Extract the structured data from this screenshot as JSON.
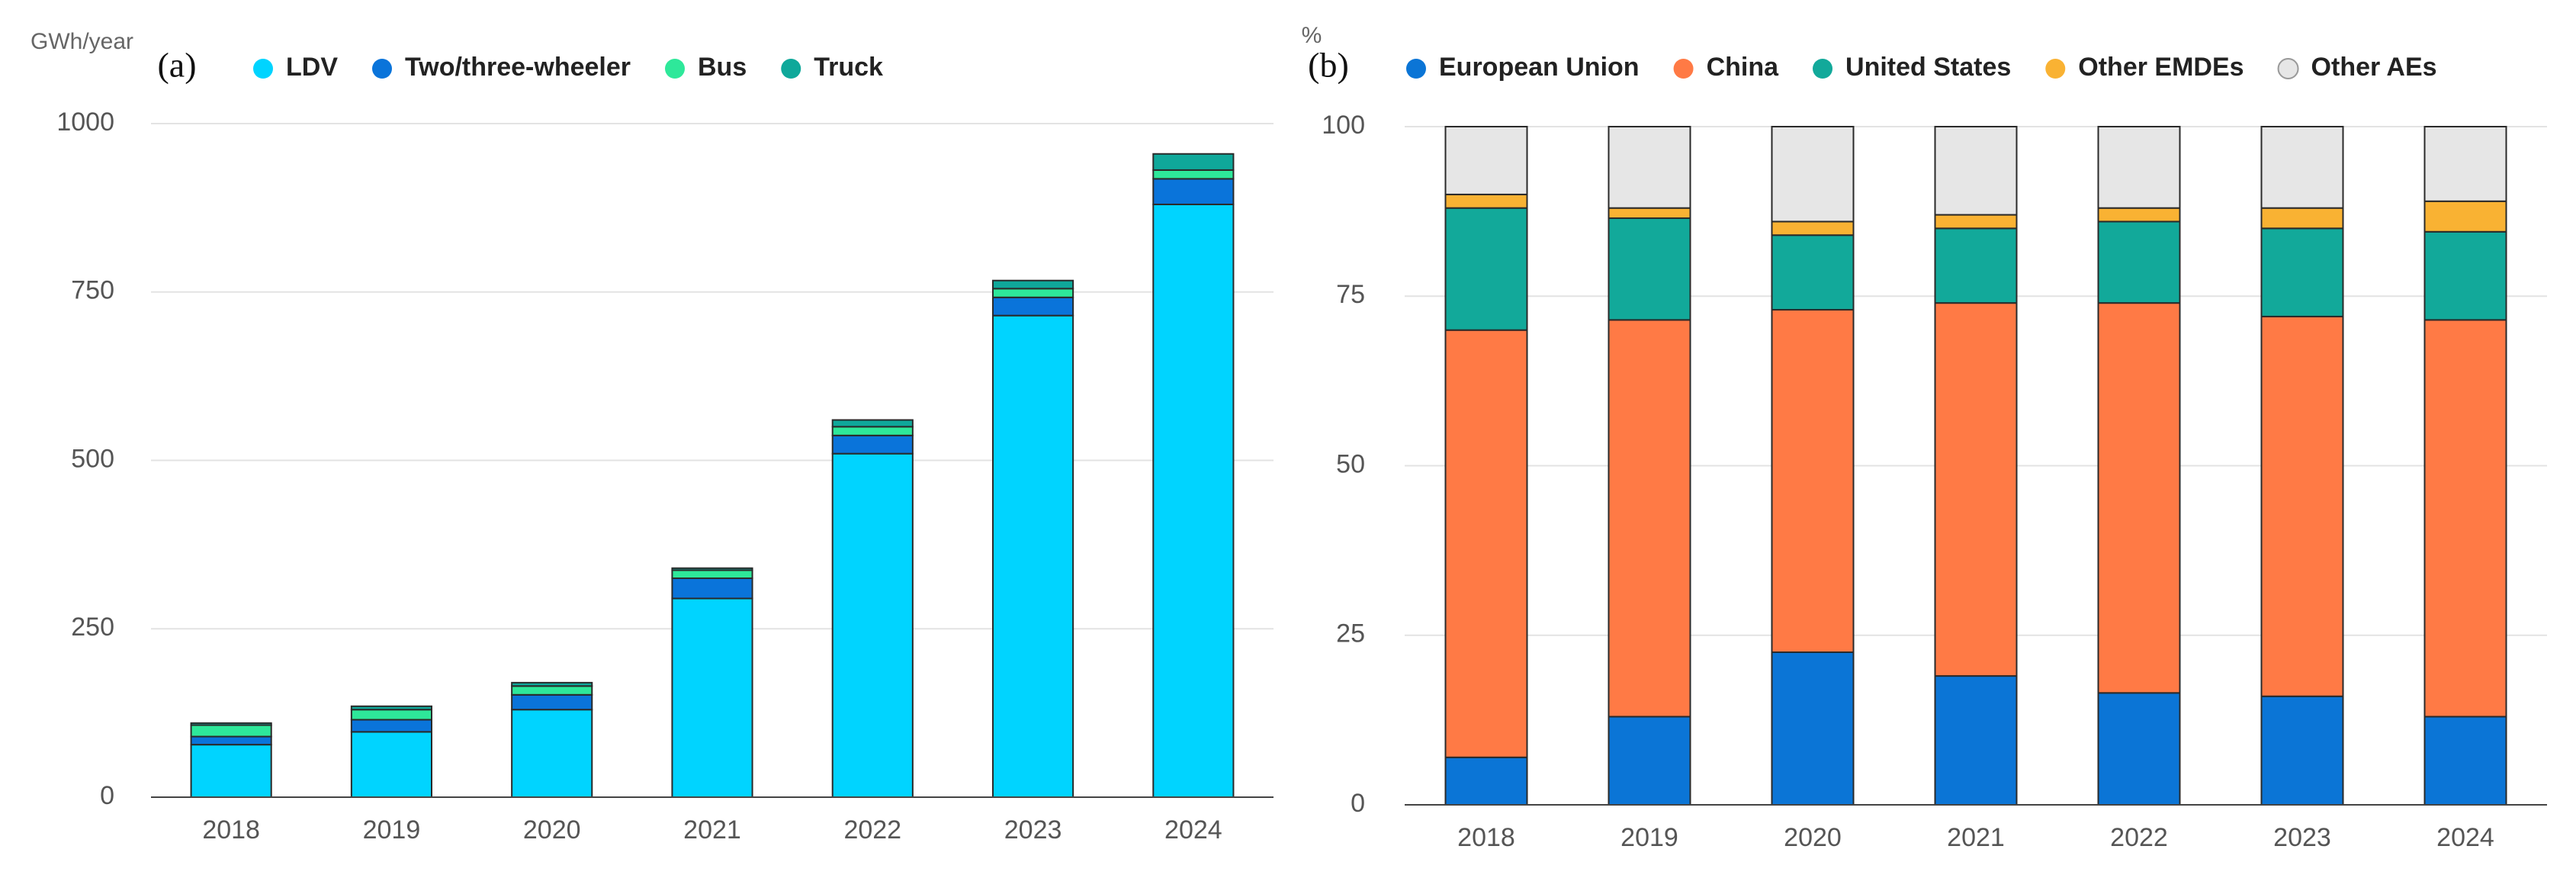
{
  "chart_data": [
    {
      "type": "bar",
      "stacked": true,
      "title": "(a)",
      "y_label": "GWh/year",
      "categories": [
        "2018",
        "2019",
        "2020",
        "2021",
        "2022",
        "2023",
        "2024"
      ],
      "series": [
        {
          "name": "LDV",
          "color": "#00d4ff",
          "values": [
            78,
            97,
            130,
            295,
            510,
            715,
            880
          ]
        },
        {
          "name": "Two/three-wheeler",
          "color": "#0a74da",
          "values": [
            12,
            18,
            22,
            30,
            27,
            27,
            38
          ]
        },
        {
          "name": "Bus",
          "color": "#2ee89a",
          "values": [
            17,
            15,
            13,
            12,
            13,
            13,
            13
          ]
        },
        {
          "name": "Truck",
          "color": "#0fa89a",
          "values": [
            3,
            5,
            5,
            3,
            10,
            12,
            24
          ]
        }
      ],
      "ylim": [
        0,
        1000
      ],
      "yticks": [
        0,
        250,
        500,
        750,
        1000
      ],
      "grid": true
    },
    {
      "type": "bar",
      "stacked": true,
      "title": "(b)",
      "y_label": "%",
      "categories": [
        "2018",
        "2019",
        "2020",
        "2021",
        "2022",
        "2023",
        "2024"
      ],
      "series": [
        {
          "name": "European Union",
          "color": "#0b75d6",
          "values": [
            7,
            13,
            22.5,
            19,
            16.5,
            16,
            13
          ]
        },
        {
          "name": "China",
          "color": "#ff7a45",
          "values": [
            63,
            58.5,
            50.5,
            55,
            57.5,
            56,
            58.5
          ]
        },
        {
          "name": "United States",
          "color": "#12a99a",
          "values": [
            18,
            15,
            11,
            11,
            12,
            13,
            13
          ]
        },
        {
          "name": "Other EMDEs",
          "color": "#f9b233",
          "values": [
            2,
            1.5,
            2,
            2,
            2,
            3,
            4.5
          ]
        },
        {
          "name": "Other AEs",
          "color": "#e6e6e6",
          "values": [
            10,
            12,
            14,
            13,
            12,
            12,
            11
          ]
        }
      ],
      "ylim": [
        0,
        100
      ],
      "yticks": [
        0,
        25,
        50,
        75,
        100
      ],
      "grid": true
    }
  ]
}
